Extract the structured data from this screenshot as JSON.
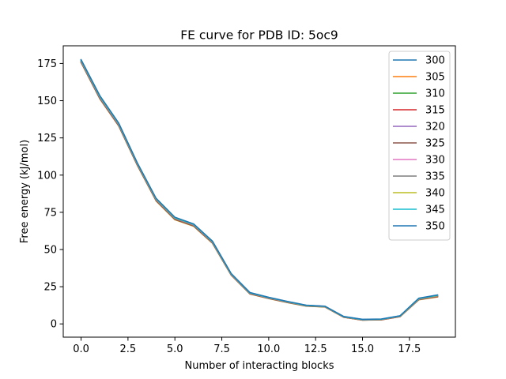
{
  "chart_data": {
    "type": "line",
    "title": "FE curve for PDB ID: 5oc9",
    "xlabel": "Number of interacting blocks",
    "ylabel": "Free energy (kJ/mol)",
    "xlim": [
      -0.95,
      19.95
    ],
    "ylim": [
      -8.9,
      186.9
    ],
    "xticks": [
      0.0,
      2.5,
      5.0,
      7.5,
      10.0,
      12.5,
      15.0,
      17.5
    ],
    "xtick_labels": [
      "0.0",
      "2.5",
      "5.0",
      "7.5",
      "10.0",
      "12.5",
      "15.0",
      "17.5"
    ],
    "yticks": [
      0,
      25,
      50,
      75,
      100,
      125,
      150,
      175
    ],
    "ytick_labels": [
      "0",
      "25",
      "50",
      "75",
      "100",
      "125",
      "150",
      "175"
    ],
    "grid": false,
    "legend_position": "top-right",
    "x": [
      0,
      1,
      2,
      3,
      4,
      5,
      6,
      7,
      8,
      9,
      10,
      11,
      12,
      13,
      14,
      15,
      16,
      17,
      18,
      19
    ],
    "series": [
      {
        "name": "300",
        "color": "#1f77b4",
        "values": [
          177.4,
          153.2,
          134.9,
          108.0,
          84.2,
          71.5,
          67.0,
          55.5,
          33.7,
          21.0,
          17.8,
          15.0,
          12.5,
          11.8,
          4.9,
          3.0,
          3.2,
          5.4,
          17.1,
          19.3
        ]
      },
      {
        "name": "305",
        "color": "#ff7f0e",
        "values": [
          175.6,
          151.2,
          133.1,
          106.4,
          82.6,
          70.0,
          65.6,
          54.2,
          32.7,
          20.1,
          17.0,
          14.3,
          11.9,
          11.3,
          4.4,
          2.5,
          2.7,
          4.8,
          16.2,
          18.1
        ]
      },
      {
        "name": "310",
        "color": "#2ca02c",
        "values": [
          175.8,
          151.4,
          133.3,
          106.6,
          82.8,
          70.2,
          65.8,
          54.4,
          32.9,
          20.2,
          17.1,
          14.4,
          12.0,
          11.4,
          4.5,
          2.6,
          2.8,
          4.9,
          16.3,
          18.3
        ]
      },
      {
        "name": "315",
        "color": "#d62728",
        "values": [
          176.0,
          151.6,
          133.5,
          106.8,
          83.0,
          70.4,
          66.0,
          54.6,
          33.0,
          20.3,
          17.2,
          14.5,
          12.1,
          11.5,
          4.5,
          2.6,
          2.8,
          4.9,
          16.4,
          18.4
        ]
      },
      {
        "name": "320",
        "color": "#9467bd",
        "values": [
          176.2,
          151.8,
          133.7,
          107.0,
          83.2,
          70.6,
          66.2,
          54.7,
          33.1,
          20.4,
          17.3,
          14.6,
          12.1,
          11.5,
          4.6,
          2.7,
          2.9,
          5.0,
          16.5,
          18.6
        ]
      },
      {
        "name": "325",
        "color": "#8c564b",
        "values": [
          176.4,
          152.0,
          133.9,
          107.2,
          83.4,
          70.8,
          66.3,
          54.9,
          33.2,
          20.5,
          17.4,
          14.7,
          12.2,
          11.6,
          4.6,
          2.7,
          2.9,
          5.0,
          16.6,
          18.7
        ]
      },
      {
        "name": "330",
        "color": "#e377c2",
        "values": [
          176.6,
          152.3,
          134.1,
          107.4,
          83.6,
          71.0,
          66.5,
          55.0,
          33.3,
          20.6,
          17.5,
          14.7,
          12.3,
          11.6,
          4.7,
          2.8,
          3.0,
          5.1,
          16.7,
          18.8
        ]
      },
      {
        "name": "335",
        "color": "#7f7f7f",
        "values": [
          176.8,
          152.5,
          134.3,
          107.6,
          83.8,
          71.1,
          66.7,
          55.1,
          33.4,
          20.7,
          17.6,
          14.8,
          12.3,
          11.7,
          4.7,
          2.8,
          3.0,
          5.2,
          16.8,
          18.9
        ]
      },
      {
        "name": "340",
        "color": "#bcbd22",
        "values": [
          177.0,
          152.7,
          134.5,
          107.7,
          83.9,
          71.2,
          66.8,
          55.3,
          33.5,
          20.8,
          17.6,
          14.9,
          12.4,
          11.7,
          4.8,
          2.9,
          3.1,
          5.2,
          16.9,
          19.0
        ]
      },
      {
        "name": "345",
        "color": "#17becf",
        "values": [
          177.2,
          152.9,
          134.7,
          107.9,
          84.1,
          71.4,
          66.9,
          55.4,
          33.6,
          20.9,
          17.7,
          15.0,
          12.4,
          11.8,
          4.8,
          2.9,
          3.1,
          5.3,
          17.0,
          19.2
        ]
      },
      {
        "name": "350",
        "color": "#1f77b4",
        "values": [
          177.6,
          153.4,
          135.1,
          108.2,
          84.4,
          71.7,
          67.2,
          55.7,
          33.9,
          21.1,
          17.9,
          15.1,
          12.6,
          11.9,
          5.0,
          3.1,
          3.3,
          5.5,
          17.3,
          19.5
        ]
      }
    ]
  }
}
